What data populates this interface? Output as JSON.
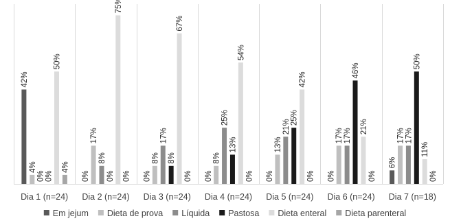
{
  "chart_data": {
    "type": "bar",
    "title": "",
    "xlabel": "",
    "ylabel": "",
    "ylim": [
      0,
      80
    ],
    "grid": false,
    "legend_position": "bottom",
    "categories": [
      "Dia 1 (n=24)",
      "Dia 2 (n=24)",
      "Dia 3 (n=24)",
      "Dia 4 (n=24)",
      "Dia 5 (n=24)",
      "Dia 6 (n=24)",
      "Dia 7 (n=18)"
    ],
    "series": [
      {
        "name": "Em jejum",
        "color": "#595959",
        "values": [
          42,
          0,
          0,
          0,
          0,
          0,
          6
        ],
        "labels": [
          "42%",
          "0%",
          "0%",
          "0%",
          "0%",
          "0%",
          "6%"
        ]
      },
      {
        "name": "Dieta de prova",
        "color": "#bfbfbf",
        "values": [
          4,
          17,
          8,
          8,
          13,
          17,
          17
        ],
        "labels": [
          "4%",
          "17%",
          "8%",
          "8%",
          "13%",
          "17%",
          "17%"
        ]
      },
      {
        "name": "Líquida",
        "color": "#8c8c8c",
        "values": [
          0,
          8,
          17,
          25,
          21,
          17,
          17
        ],
        "labels": [
          "0%",
          "8%",
          "17%",
          "25%",
          "21%",
          "17%",
          "17%"
        ]
      },
      {
        "name": "Pastosa",
        "color": "#1a1a1a",
        "values": [
          0,
          0,
          8,
          13,
          25,
          46,
          50
        ],
        "labels": [
          "0%",
          "0%",
          "8%",
          "13%",
          "25%",
          "46%",
          "50%"
        ]
      },
      {
        "name": "Dieta enteral",
        "color": "#dcdcdc",
        "values": [
          50,
          75,
          67,
          54,
          42,
          21,
          11
        ],
        "labels": [
          "50%",
          "75%",
          "67%",
          "54%",
          "42%",
          "21%",
          "11%"
        ]
      },
      {
        "name": "Dieta parenteral",
        "color": "#a6a6a6",
        "values": [
          4,
          0,
          0,
          0,
          0,
          0,
          0
        ],
        "labels": [
          "4%",
          "0%",
          "0%",
          "0%",
          "0%",
          "0%",
          "0%"
        ]
      }
    ]
  }
}
